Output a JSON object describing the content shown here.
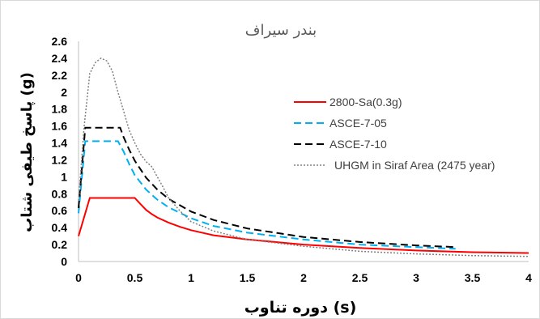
{
  "chart_data": {
    "type": "line",
    "title": "بندر سیراف",
    "xlabel": "دوره تناوب (s)",
    "ylabel": "پاسخ طیفی شتاب (g)",
    "xlim": [
      0,
      4
    ],
    "ylim": [
      0,
      2.6
    ],
    "x_ticks": [
      "0",
      "0.5",
      "1",
      "1.5",
      "2",
      "2.5",
      "3",
      "3.5",
      "4"
    ],
    "y_ticks": [
      "0",
      "0.2",
      "0.4",
      "0.6",
      "0.8",
      "1",
      "1.2",
      "1.4",
      "1.6",
      "1.8",
      "2",
      "2.2",
      "2.4",
      "2.6"
    ],
    "grid": false,
    "legend_position": "right",
    "series": [
      {
        "name": "2800-Sa(0.3g)",
        "color": "#ff0000",
        "style": "solid",
        "x": [
          0,
          0.1,
          0.5,
          0.55,
          0.6,
          0.65,
          0.7,
          0.8,
          0.9,
          1.0,
          1.2,
          1.5,
          2.0,
          2.5,
          3.0,
          3.5,
          4.0
        ],
        "y": [
          0.3,
          0.75,
          0.75,
          0.68,
          0.61,
          0.56,
          0.52,
          0.46,
          0.41,
          0.37,
          0.31,
          0.26,
          0.2,
          0.16,
          0.13,
          0.11,
          0.1
        ]
      },
      {
        "name": "ASCE-7-05",
        "color": "#00b0f0",
        "style": "dashed",
        "x": [
          0,
          0.06,
          0.35,
          0.4,
          0.45,
          0.5,
          0.6,
          0.7,
          0.8,
          1.0,
          1.2,
          1.5,
          2.0,
          2.5,
          3.0,
          3.35
        ],
        "y": [
          0.57,
          1.42,
          1.42,
          1.3,
          1.15,
          1.02,
          0.85,
          0.73,
          0.64,
          0.51,
          0.42,
          0.34,
          0.26,
          0.2,
          0.17,
          0.15
        ]
      },
      {
        "name": "ASCE-7-10",
        "color": "#000000",
        "style": "dashed",
        "x": [
          0,
          0.06,
          0.37,
          0.4,
          0.45,
          0.5,
          0.6,
          0.7,
          0.8,
          1.0,
          1.2,
          1.5,
          2.0,
          2.5,
          3.0,
          3.35
        ],
        "y": [
          0.63,
          1.58,
          1.58,
          1.47,
          1.32,
          1.19,
          0.99,
          0.85,
          0.74,
          0.59,
          0.49,
          0.39,
          0.29,
          0.23,
          0.19,
          0.17
        ]
      },
      {
        "name": "UHGM in Siraf Area (2475 year)",
        "color": "#808080",
        "style": "dotted",
        "x": [
          0,
          0.05,
          0.1,
          0.15,
          0.2,
          0.25,
          0.3,
          0.35,
          0.4,
          0.45,
          0.5,
          0.55,
          0.6,
          0.65,
          0.7,
          0.75,
          0.8,
          0.9,
          1.0,
          1.2,
          1.5,
          2.0,
          2.5,
          3.0,
          3.5,
          4.0
        ],
        "y": [
          0.72,
          1.6,
          2.22,
          2.35,
          2.4,
          2.37,
          2.25,
          2.0,
          1.78,
          1.55,
          1.4,
          1.27,
          1.18,
          1.12,
          1.0,
          0.88,
          0.75,
          0.6,
          0.47,
          0.36,
          0.26,
          0.18,
          0.12,
          0.09,
          0.07,
          0.06
        ]
      }
    ]
  }
}
